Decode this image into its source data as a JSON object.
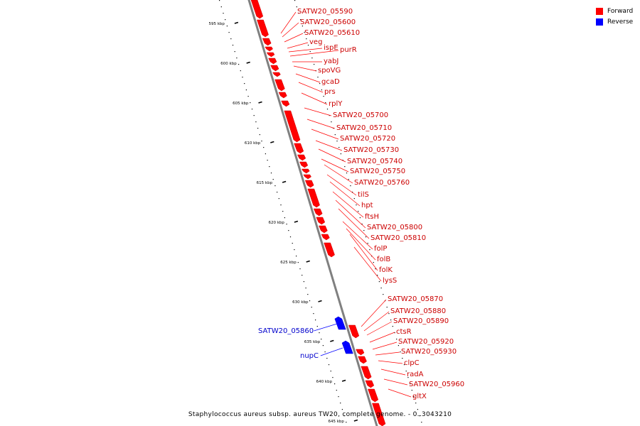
{
  "legend": [
    {
      "label": "Forward",
      "color": "#ff0000"
    },
    {
      "label": "Reverse",
      "color": "#0000ff"
    }
  ],
  "caption": "Staphylococcus aureus subsp. aureus TW20, complete genome. - 0..3043210",
  "colors": {
    "forward": "#ff0000",
    "reverse": "#0000ff",
    "backbone": "#808080",
    "ticks": "#000000"
  },
  "scale_labels": [
    "595 kbp",
    "600 kbp",
    "605 kbp",
    "610 kbp",
    "615 kbp",
    "620 kbp",
    "625 kbp",
    "630 kbp",
    "635 kbp",
    "640 kbp",
    "645 kbp"
  ],
  "forward_labels": [
    "SATW20_05590",
    "SATW20_05600",
    "SATW20_05610",
    "veg",
    "ispE",
    "purR",
    "yabJ",
    "spoVG",
    "gcaD",
    "prs",
    "rplY",
    "SATW20_05700",
    "SATW20_05710",
    "SATW20_05720",
    "SATW20_05730",
    "SATW20_05740",
    "SATW20_05750",
    "SATW20_05760",
    "tilS",
    "hpt",
    "ftsH",
    "SATW20_05800",
    "SATW20_05810",
    "folP",
    "folB",
    "folK",
    "lysS",
    "SATW20_05870",
    "SATW20_05880",
    "SATW20_05890",
    "ctsR",
    "SATW20_05920",
    "SATW20_05930",
    "clpC",
    "radA",
    "SATW20_05960",
    "gltX"
  ],
  "reverse_labels": [
    "SATW20_05860",
    "nupC"
  ]
}
